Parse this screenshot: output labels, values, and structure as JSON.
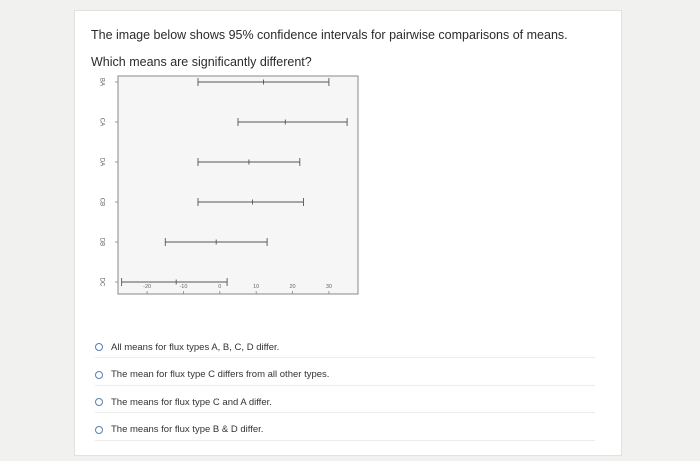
{
  "question": {
    "line1": "The image below shows 95% confidence intervals for pairwise comparisons of means.",
    "line2": "Which means are significantly different?"
  },
  "chart_data": {
    "type": "interval",
    "categories": [
      "BA",
      "CA",
      "DA",
      "CB",
      "DB",
      "DC"
    ],
    "intervals": [
      {
        "label": "BA",
        "low": -6,
        "mid": 12,
        "high": 30
      },
      {
        "label": "CA",
        "low": 5,
        "mid": 18,
        "high": 35
      },
      {
        "label": "DA",
        "low": -6,
        "mid": 8,
        "high": 22
      },
      {
        "label": "CB",
        "low": -6,
        "mid": 9,
        "high": 23
      },
      {
        "label": "DB",
        "low": -15,
        "mid": -1,
        "high": 13
      },
      {
        "label": "DC",
        "low": -27,
        "mid": -12,
        "high": 2
      }
    ],
    "x_ticks": [
      "-20",
      "-10",
      "0",
      "10",
      "20",
      "30"
    ],
    "x_tick_values": [
      -20,
      -10,
      0,
      10,
      20,
      30
    ],
    "xlim": [
      -28,
      38
    ],
    "grid": false,
    "colors": {
      "line": "#555555",
      "frame": "#888888",
      "plot_bg": "#f6f6f6"
    }
  },
  "options": [
    {
      "label": "All means for flux types A, B, C, D differ."
    },
    {
      "label": "The mean for flux type C differs from all other types."
    },
    {
      "label": "The means for flux type C and A differ."
    },
    {
      "label": "The means for flux type B & D differ."
    }
  ]
}
